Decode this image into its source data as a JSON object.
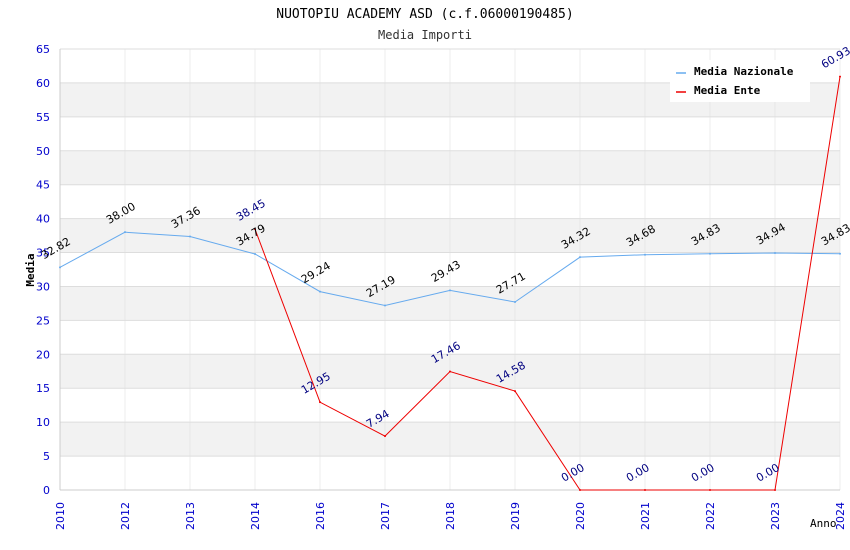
{
  "chart_data": {
    "type": "line",
    "title": "NUOTOPIU ACADEMY ASD (c.f.06000190485)",
    "subtitle": "Media Importi",
    "xlabel": "Anno",
    "ylabel": "Media",
    "ylim": [
      0,
      65
    ],
    "yticks": [
      0,
      5,
      10,
      15,
      20,
      25,
      30,
      35,
      40,
      45,
      50,
      55,
      60,
      65
    ],
    "grid": true,
    "legend_position": "top-right",
    "categories": [
      "2010",
      "2012",
      "2013",
      "2014",
      "2016",
      "2017",
      "2018",
      "2019",
      "2020",
      "2021",
      "2022",
      "2023",
      "2024"
    ],
    "series": [
      {
        "name": "Media Nazionale",
        "color": "#66aaee",
        "label_color": "#000000",
        "values": [
          32.82,
          38.0,
          37.36,
          34.79,
          29.24,
          27.19,
          29.43,
          27.71,
          34.32,
          34.68,
          34.83,
          34.94,
          34.83
        ],
        "labels": [
          "32.82",
          "38.00",
          "37.36",
          "34.79",
          "29.24",
          "27.19",
          "29.43",
          "27.71",
          "34.32",
          "34.68",
          "34.83",
          "34.94",
          "34.83"
        ]
      },
      {
        "name": "Media Ente",
        "color": "#ee0000",
        "label_color": "#000080",
        "values": [
          null,
          null,
          null,
          38.45,
          12.95,
          7.94,
          17.46,
          14.58,
          0.0,
          0.0,
          0.0,
          0.0,
          60.93
        ],
        "labels": [
          null,
          null,
          null,
          "38.45",
          "12.95",
          "7.94",
          "17.46",
          "14.58",
          "0.00",
          "0.00",
          "0.00",
          "0.00",
          "60.93"
        ]
      }
    ]
  },
  "colors": {
    "axis_text": "#0000cc",
    "band": "#f2f2f2",
    "grid": "#dddddd",
    "axis_line": "#cccccc"
  }
}
